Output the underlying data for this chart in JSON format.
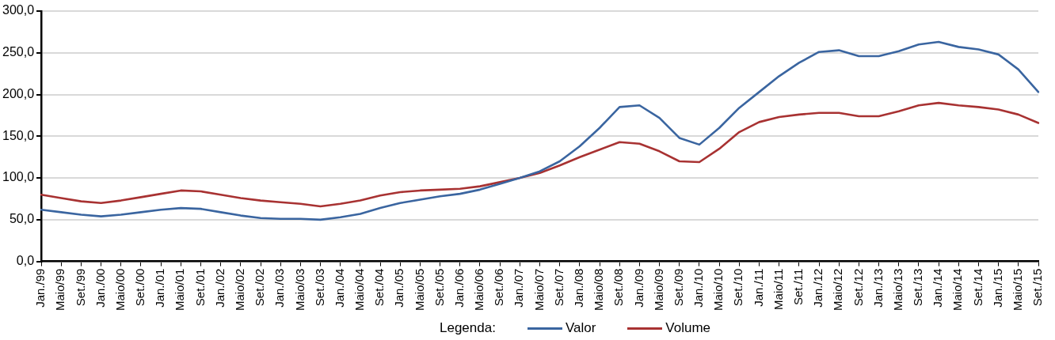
{
  "chart_data": {
    "type": "line",
    "categories": [
      "Jan./99",
      "Maio/99",
      "Set./99",
      "Jan./00",
      "Maio/00",
      "Set./00",
      "Jan./01",
      "Maio/01",
      "Set./01",
      "Jan./02",
      "Maio/02",
      "Set./02",
      "Jan./03",
      "Maio/03",
      "Set./03",
      "Jan./04",
      "Maio/04",
      "Set./04",
      "Jan./05",
      "Maio/05",
      "Set./05",
      "Jan./06",
      "Maio/06",
      "Set./06",
      "Jan./07",
      "Maio/07",
      "Set./07",
      "Jan./08",
      "Maio/08",
      "Set./08",
      "Jan./09",
      "Maio/09",
      "Set./09",
      "Jan./10",
      "Maio/10",
      "Set./10",
      "Jan./11",
      "Maio/11",
      "Set./11",
      "Jan./12",
      "Maio/12",
      "Set./12",
      "Jan./13",
      "Maio/13",
      "Set./13",
      "Jan./14",
      "Maio/14",
      "Set./14",
      "Jan./15",
      "Maio/15",
      "Set./15"
    ],
    "series": [
      {
        "name": "Valor",
        "color": "#3a65a0",
        "values": [
          62,
          59,
          56,
          54,
          56,
          59,
          62,
          64,
          63,
          59,
          55,
          52,
          51,
          51,
          50,
          53,
          57,
          64,
          70,
          74,
          78,
          81,
          86,
          93,
          100,
          108,
          120,
          138,
          160,
          185,
          187,
          172,
          148,
          140,
          160,
          184,
          203,
          222,
          238,
          251,
          253,
          246,
          246,
          252,
          260,
          263,
          257,
          254,
          248,
          230,
          203
        ]
      },
      {
        "name": "Volume",
        "color": "#a83232",
        "values": [
          80,
          76,
          72,
          70,
          73,
          77,
          81,
          85,
          84,
          80,
          76,
          73,
          71,
          69,
          66,
          69,
          73,
          79,
          83,
          85,
          86,
          87,
          90,
          95,
          100,
          106,
          115,
          125,
          134,
          143,
          141,
          132,
          120,
          119,
          135,
          155,
          167,
          173,
          176,
          178,
          178,
          174,
          174,
          180,
          187,
          190,
          187,
          185,
          182,
          176,
          166
        ]
      }
    ],
    "ylim": [
      0,
      300
    ],
    "yticks": [
      {
        "value": 0,
        "label": "0,0"
      },
      {
        "value": 50,
        "label": "50,0"
      },
      {
        "value": 100,
        "label": "100,0"
      },
      {
        "value": 150,
        "label": "150,0"
      },
      {
        "value": 200,
        "label": "200,0"
      },
      {
        "value": 250,
        "label": "250,0"
      },
      {
        "value": 300,
        "label": "300,0"
      }
    ],
    "grid": "y",
    "legend": "bottom",
    "legend_title": "Legenda:",
    "marker": "none",
    "line_style": "solid"
  }
}
